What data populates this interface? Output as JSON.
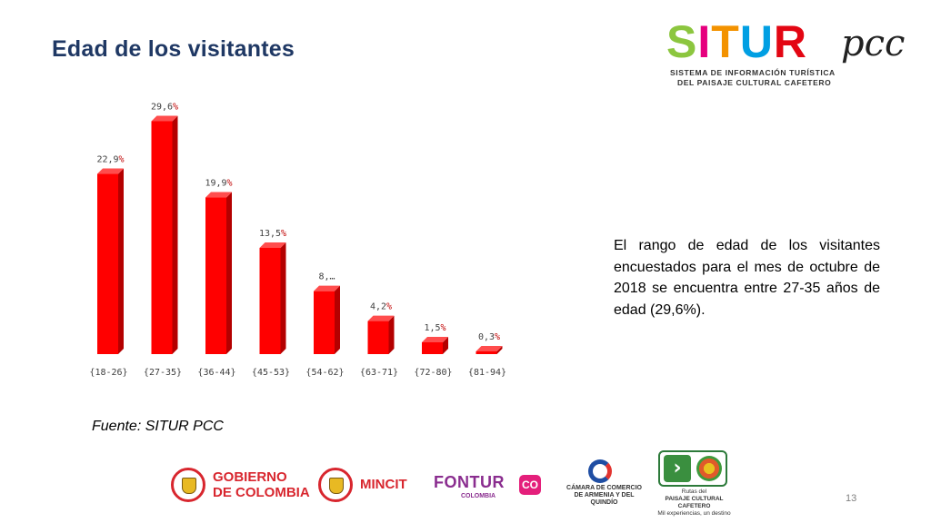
{
  "slide": {
    "title": "Edad de los visitantes",
    "summary": "El rango de edad de los visitantes encuestados para el mes de octubre de 2018 se encuentra entre 27-35 años de edad (29,6%).",
    "source": "Fuente: SITUR PCC",
    "page_number": "13"
  },
  "brand": {
    "letters": [
      "S",
      "I",
      "T",
      "U",
      "R"
    ],
    "letter_colors": [
      "#8cc63f",
      "#e6007e",
      "#f39200",
      "#009fe3",
      "#e30613"
    ],
    "suffix": "pcc",
    "line1": "SISTEMA DE INFORMACIÓN TURÍSTICA",
    "line2": "DEL PAISAJE CULTURAL CAFETERO"
  },
  "chart_data": {
    "type": "bar",
    "title": "",
    "xlabel": "",
    "ylabel": "",
    "categories": [
      "{18-26}",
      "{27-35}",
      "{36-44}",
      "{45-53}",
      "{54-62}",
      "{63-71}",
      "{72-80}",
      "{81-94}"
    ],
    "values": [
      22.9,
      29.6,
      19.9,
      13.5,
      8.0,
      4.2,
      1.5,
      0.3
    ],
    "value_labels": [
      "22,9%",
      "29,6%",
      "19,9%",
      "13,5%",
      "8,…",
      "4,2%",
      "1,5%",
      "0,3%"
    ],
    "ylim": [
      0,
      30
    ],
    "grid": false,
    "legend": "none",
    "bar_color": "#ff0000",
    "bar_side_color": "#b40000",
    "bar_top_color": "#ff4d4d",
    "label_color": "#404040",
    "percent_color": "#c00000"
  },
  "footer_logos": {
    "gobierno": {
      "line1": "GOBIERNO",
      "line2": "DE COLOMBIA"
    },
    "mincit": "MINCIT",
    "fontur": {
      "word": "FONTUR",
      "sub": "COLOMBIA",
      "badge": "CO"
    },
    "camara": {
      "line1": "CÁMARA DE COMERCIO",
      "line2": "DE ARMENIA Y DEL QUINDÍO"
    },
    "rutas": {
      "line1": "Rutas del",
      "line2": "PAISAJE CULTURAL CAFETERO",
      "line3": "Mil experiencias, un destino"
    }
  }
}
